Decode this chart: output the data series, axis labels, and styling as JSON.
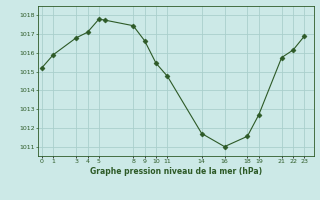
{
  "x": [
    0,
    1,
    3,
    4,
    5,
    5.5,
    8,
    9,
    10,
    11,
    14,
    16,
    18,
    19,
    21,
    22,
    23
  ],
  "y": [
    1015.2,
    1015.9,
    1016.8,
    1017.1,
    1017.8,
    1017.75,
    1017.45,
    1016.65,
    1015.45,
    1014.75,
    1011.7,
    1011.0,
    1011.55,
    1012.7,
    1015.75,
    1016.15,
    1016.9
  ],
  "ylim": [
    1010.5,
    1018.5
  ],
  "xlim": [
    -0.3,
    23.8
  ],
  "y_ticks": [
    1011,
    1012,
    1013,
    1014,
    1015,
    1016,
    1017,
    1018
  ],
  "x_ticks": [
    0,
    1,
    3,
    4,
    5,
    8,
    9,
    10,
    11,
    14,
    16,
    18,
    19,
    21,
    22,
    23
  ],
  "line_color": "#2d5a27",
  "marker_color": "#2d5a27",
  "bg_color": "#cce9e7",
  "grid_color": "#aacfcc",
  "xlabel": "Graphe pression niveau de la mer (hPa)",
  "xlabel_color": "#2d5a27",
  "tick_color": "#2d5a27"
}
